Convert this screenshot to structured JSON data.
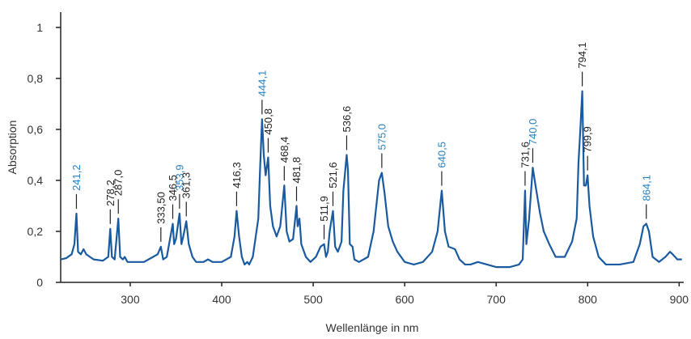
{
  "chart_data": {
    "type": "line",
    "x_label": "Wellenlänge in nm",
    "y_label": "Absorption",
    "xlim": [
      224,
      905
    ],
    "ylim": [
      0,
      1.06
    ],
    "xticks": [
      300,
      400,
      500,
      600,
      700,
      800,
      900
    ],
    "yticks": [
      0,
      {
        "value": 0.2,
        "label": "0,2"
      },
      {
        "value": 0.4,
        "label": "0,4"
      },
      {
        "value": 0.6,
        "label": "0,6"
      },
      {
        "value": 0.8,
        "label": "0,8"
      },
      1
    ],
    "series": [
      {
        "color": "#1a5aa0",
        "x": [
          224,
          230,
          236,
          239,
          241.2,
          243,
          246,
          249,
          252,
          260,
          270,
          276,
          278.2,
          280,
          283,
          287,
          289,
          292,
          294,
          297,
          305,
          315,
          325,
          330,
          333.5,
          336,
          340,
          343,
          346.5,
          348,
          350,
          353.9,
          356,
          358,
          361.3,
          364,
          368,
          372,
          380,
          385,
          390,
          400,
          410,
          414,
          416.3,
          419,
          422,
          425,
          428,
          430,
          434,
          440,
          442,
          444.1,
          446,
          448,
          450.8,
          453,
          456,
          460,
          464,
          468.4,
          471,
          474,
          478,
          481.8,
          483,
          485,
          487,
          492,
          497,
          503,
          508,
          511.9,
          514,
          516,
          518,
          521.6,
          524,
          527,
          531,
          533,
          536.6,
          538,
          540,
          543,
          545,
          550,
          560,
          566,
          572,
          575,
          578,
          582,
          587,
          592,
          600,
          610,
          620,
          630,
          636,
          640.5,
          644,
          648,
          655,
          660,
          666,
          672,
          680,
          690,
          700,
          715,
          725,
          729,
          731.6,
          733,
          736,
          740,
          743,
          748,
          752,
          758,
          765,
          775,
          783,
          788,
          790,
          792,
          794.1,
          796,
          798,
          799.9,
          802,
          806,
          812,
          820,
          835,
          850,
          857,
          861,
          864.1,
          867,
          871,
          878,
          885,
          890,
          893,
          898,
          903
        ],
        "values": [
          0.09,
          0.095,
          0.11,
          0.15,
          0.27,
          0.12,
          0.11,
          0.13,
          0.11,
          0.09,
          0.085,
          0.1,
          0.21,
          0.1,
          0.09,
          0.25,
          0.1,
          0.09,
          0.1,
          0.08,
          0.08,
          0.08,
          0.1,
          0.11,
          0.14,
          0.09,
          0.1,
          0.16,
          0.23,
          0.15,
          0.17,
          0.27,
          0.15,
          0.18,
          0.24,
          0.15,
          0.1,
          0.08,
          0.08,
          0.09,
          0.08,
          0.08,
          0.1,
          0.18,
          0.28,
          0.18,
          0.1,
          0.07,
          0.08,
          0.07,
          0.1,
          0.25,
          0.45,
          0.64,
          0.5,
          0.42,
          0.49,
          0.3,
          0.22,
          0.18,
          0.22,
          0.38,
          0.2,
          0.16,
          0.17,
          0.3,
          0.22,
          0.25,
          0.15,
          0.1,
          0.08,
          0.1,
          0.14,
          0.15,
          0.1,
          0.12,
          0.2,
          0.28,
          0.14,
          0.12,
          0.16,
          0.36,
          0.5,
          0.44,
          0.15,
          0.14,
          0.09,
          0.08,
          0.1,
          0.2,
          0.4,
          0.43,
          0.35,
          0.22,
          0.16,
          0.12,
          0.08,
          0.07,
          0.08,
          0.12,
          0.2,
          0.36,
          0.2,
          0.14,
          0.13,
          0.09,
          0.07,
          0.07,
          0.08,
          0.07,
          0.06,
          0.06,
          0.07,
          0.09,
          0.36,
          0.15,
          0.25,
          0.45,
          0.38,
          0.27,
          0.2,
          0.15,
          0.1,
          0.1,
          0.16,
          0.25,
          0.47,
          0.6,
          0.75,
          0.38,
          0.38,
          0.42,
          0.3,
          0.18,
          0.1,
          0.07,
          0.07,
          0.08,
          0.15,
          0.22,
          0.23,
          0.2,
          0.1,
          0.08,
          0.1,
          0.12,
          0.11,
          0.09,
          0.09
        ]
      }
    ],
    "annotations": [
      {
        "x": 241.2,
        "label": "241,2",
        "color": "#2a82c0"
      },
      {
        "x": 278.2,
        "label": "278,2",
        "color": "#222222"
      },
      {
        "x": 287,
        "label": "287,0",
        "color": "#222222"
      },
      {
        "x": 333.5,
        "label": "333,50",
        "color": "#222222"
      },
      {
        "x": 346.5,
        "label": "346,5",
        "color": "#222222"
      },
      {
        "x": 353.9,
        "label": "353,9",
        "color": "#2a82c0"
      },
      {
        "x": 361.3,
        "label": "361,3",
        "color": "#222222"
      },
      {
        "x": 416.3,
        "label": "416,3",
        "color": "#222222"
      },
      {
        "x": 444.1,
        "label": "444,1",
        "color": "#2a82c0"
      },
      {
        "x": 450.8,
        "label": "450,8",
        "color": "#222222"
      },
      {
        "x": 468.4,
        "label": "468,4",
        "color": "#222222"
      },
      {
        "x": 481.8,
        "label": "481,8",
        "color": "#222222"
      },
      {
        "x": 511.9,
        "label": "511,9",
        "color": "#222222"
      },
      {
        "x": 521.6,
        "label": "521,6",
        "color": "#222222"
      },
      {
        "x": 536.6,
        "label": "536,6",
        "color": "#222222"
      },
      {
        "x": 575,
        "label": "575,0",
        "color": "#2a82c0"
      },
      {
        "x": 640.5,
        "label": "640,5",
        "color": "#2a82c0"
      },
      {
        "x": 731.6,
        "label": "731,6",
        "color": "#222222"
      },
      {
        "x": 740,
        "label": "740,0",
        "color": "#2a82c0"
      },
      {
        "x": 794.1,
        "label": "794,1",
        "color": "#222222"
      },
      {
        "x": 799.9,
        "label": "799,9",
        "color": "#222222"
      },
      {
        "x": 864.1,
        "label": "864,1",
        "color": "#2a82c0"
      }
    ]
  }
}
